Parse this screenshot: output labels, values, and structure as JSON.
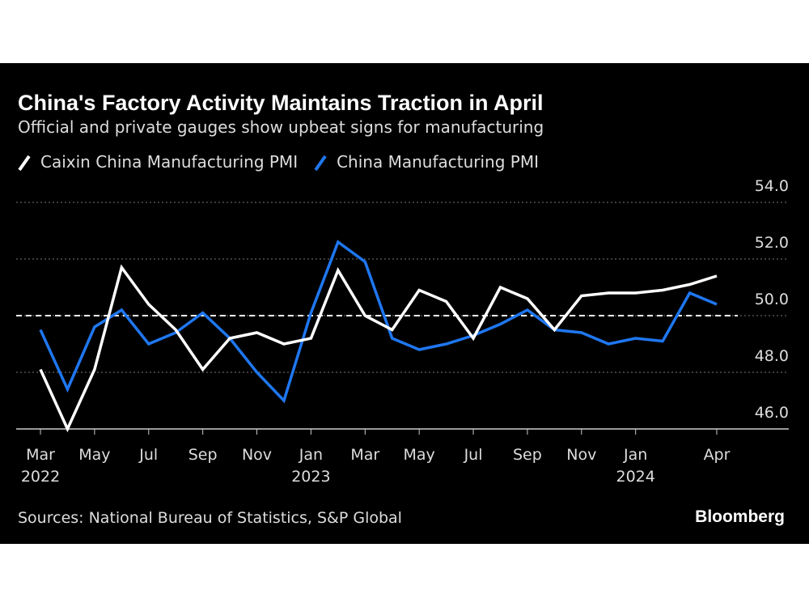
{
  "chart_data": {
    "type": "line",
    "title": "China's Factory Activity Maintains Traction in April",
    "subtitle": "Official and private gauges show upbeat signs for manufacturing",
    "source": "Sources: National Bureau of Statistics, S&P Global",
    "brand": "Bloomberg",
    "categories": [
      "Mar\n2022",
      null,
      "May",
      null,
      "Jul",
      null,
      "Sep",
      null,
      "Nov",
      null,
      "Jan\n2023",
      null,
      "Mar",
      null,
      "May",
      null,
      "Jul",
      null,
      "Sep",
      null,
      "Nov",
      null,
      "Jan\n2024",
      null,
      null,
      "Apr"
    ],
    "series": [
      {
        "name": "Caixin China Manufacturing PMI",
        "color": "#ffffff",
        "values": [
          48.1,
          46.0,
          48.1,
          51.7,
          50.4,
          49.5,
          48.1,
          49.2,
          49.4,
          49.0,
          49.2,
          51.6,
          50.0,
          49.5,
          50.9,
          50.5,
          49.2,
          51.0,
          50.6,
          49.5,
          50.7,
          50.8,
          50.8,
          50.9,
          51.1,
          51.4
        ]
      },
      {
        "name": "China Manufacturing PMI",
        "color": "#1f77f0",
        "values": [
          49.5,
          47.4,
          49.6,
          50.2,
          49.0,
          49.4,
          50.1,
          49.2,
          48.0,
          47.0,
          50.1,
          52.6,
          51.9,
          49.2,
          48.8,
          49.0,
          49.3,
          49.7,
          50.2,
          49.5,
          49.4,
          49.0,
          49.2,
          49.1,
          50.8,
          50.4
        ]
      }
    ],
    "ylim": [
      46,
      54
    ],
    "yticks": [
      {
        "value": 46,
        "label": "46.0"
      },
      {
        "value": 48,
        "label": "48.0"
      },
      {
        "value": 50,
        "label": "50.0"
      },
      {
        "value": 52,
        "label": "52.0"
      },
      {
        "value": 54,
        "label": "54.0"
      }
    ],
    "reference_line": 50,
    "grid": true
  }
}
